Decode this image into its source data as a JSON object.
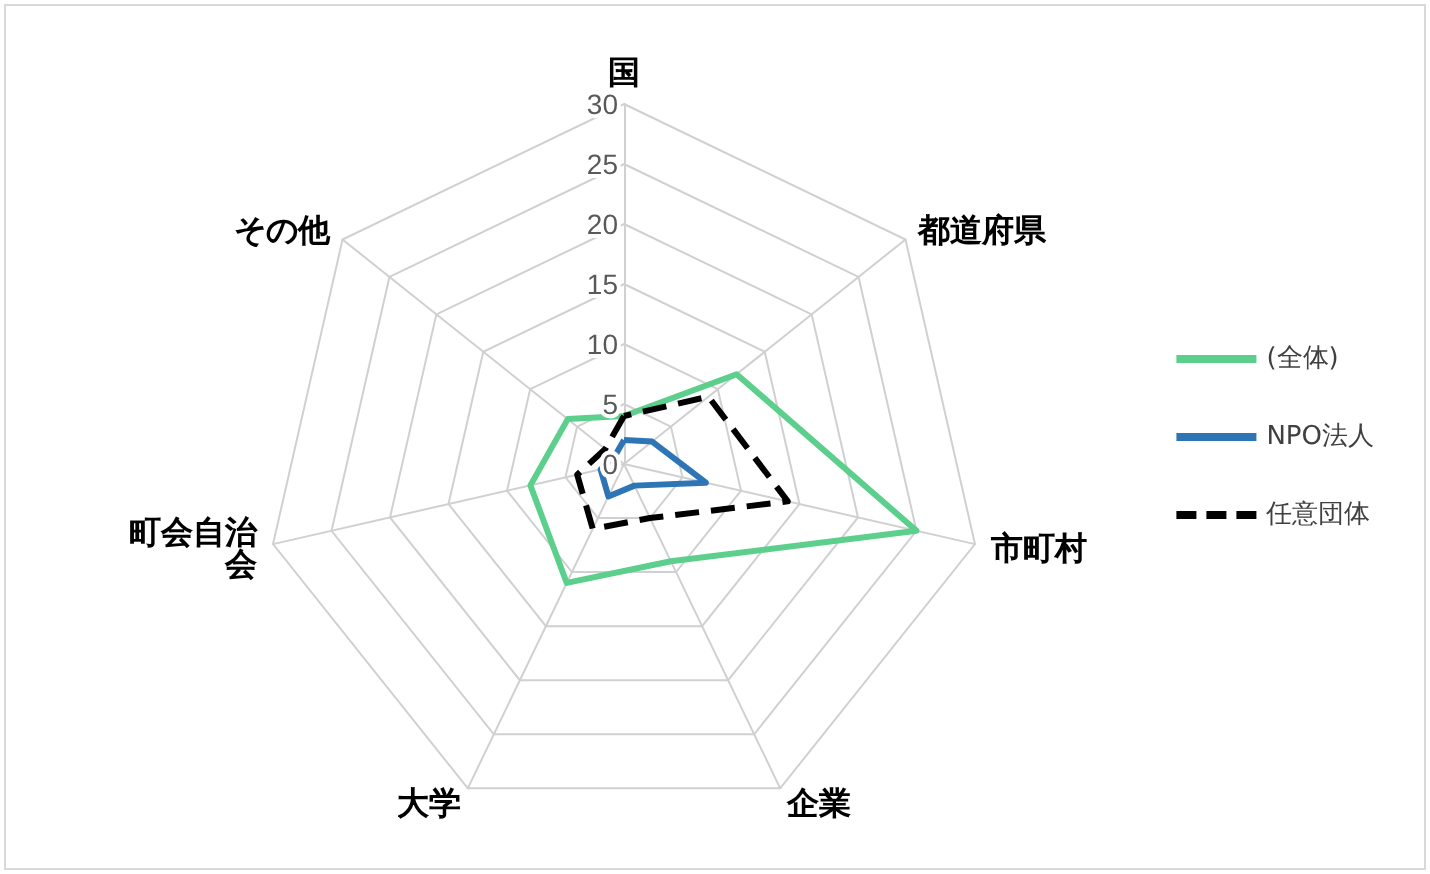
{
  "chart_data": {
    "type": "radar",
    "categories": [
      "国",
      "都道府県",
      "市町村",
      "企業",
      "大学",
      "町会自治会",
      "その他"
    ],
    "series": [
      {
        "name": "(全体)",
        "color": "#5ccf8c",
        "values": [
          4,
          12,
          25,
          9,
          11,
          8,
          6
        ]
      },
      {
        "name": "NPO法人",
        "color": "#2e75b6",
        "values": [
          2,
          3,
          7,
          2,
          3,
          2,
          1
        ]
      },
      {
        "name": "任意団体",
        "color": "#000000",
        "line_style": "dashed",
        "values": [
          4,
          9,
          14,
          5,
          6,
          4,
          2
        ]
      }
    ],
    "ylim": [
      0,
      30
    ],
    "yticks": [
      0,
      5,
      10,
      15,
      20,
      25,
      30
    ],
    "grid": true,
    "legend": "right",
    "marker": "none"
  }
}
